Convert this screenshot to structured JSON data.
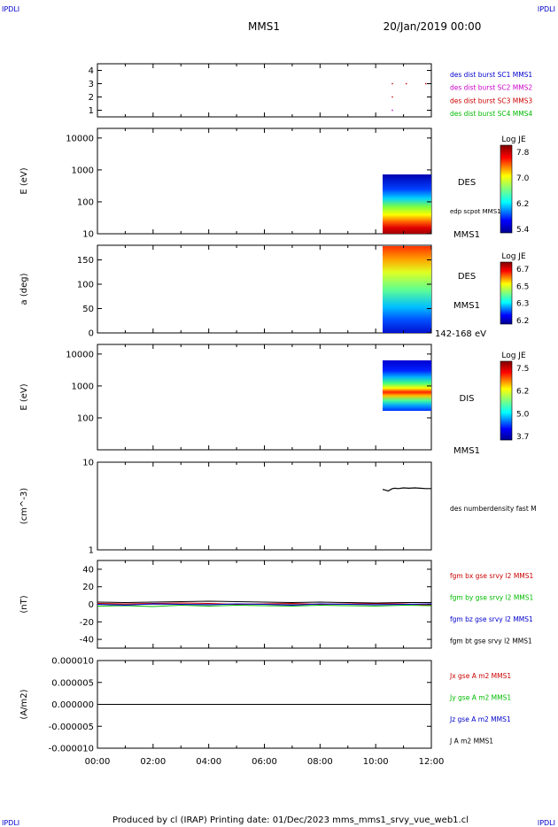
{
  "corner_labels": {
    "top_left": "IPDLI",
    "top_right": "IPDLI",
    "bottom_left": "IPDLI",
    "bottom_right": "IPDLI"
  },
  "header": {
    "title": "MMS1",
    "datetime": "20/Jan/2019 00:00"
  },
  "footer": {
    "text": "Produced by cl (IRAP)   Printing date: 01/Dec/2023   mms_mms1_srvy_vue_web1.cl"
  },
  "colors": {
    "axis": "#000000",
    "blue": "#0000cc",
    "magenta": "#cc00cc",
    "red": "#cc0000",
    "green": "#00bb00",
    "black": "#000000"
  },
  "chart_data": [
    {
      "type": "scatter",
      "panel": "burst-flags",
      "ylim": [
        0.5,
        4.5
      ],
      "y_ticks": [
        "1",
        "2",
        "3",
        "4"
      ],
      "legend": [
        "des dist burst SC1 MMS1",
        "des dist burst SC2 MMS2",
        "des dist burst SC3 MMS3",
        "des dist burst SC4 MMS4"
      ],
      "points": [
        [
          10.6,
          3
        ],
        [
          11.1,
          3
        ],
        [
          11.8,
          3
        ],
        [
          10.6,
          2
        ],
        [
          10.6,
          1
        ]
      ]
    },
    {
      "type": "heatmap",
      "panel": "des-energy",
      "ylabel": "E (eV)",
      "yscale": "log",
      "ylim": [
        10,
        20000
      ],
      "y_ticks": [
        "10",
        "100",
        "1000",
        "10000"
      ],
      "x_range": [
        10.25,
        12.0
      ],
      "y_range": [
        10,
        900
      ],
      "colorbar": {
        "title": "Log JE",
        "ticks": [
          "7.8",
          "7.0",
          "6.2",
          "5.4"
        ],
        "range": [
          5.4,
          7.8
        ]
      },
      "labels": [
        "DES",
        "edp scpot MMS1",
        "MMS1"
      ]
    },
    {
      "type": "heatmap",
      "panel": "des-pitch",
      "ylabel": "a (deg)",
      "ylim": [
        0,
        180
      ],
      "y_ticks": [
        "0",
        "50",
        "100",
        "150"
      ],
      "x_range": [
        10.25,
        12.0
      ],
      "colorbar": {
        "title": "Log JE",
        "ticks": [
          "6.7",
          "6.5",
          "6.3",
          "6.2"
        ],
        "range": [
          6.2,
          6.7
        ]
      },
      "labels": [
        "DES",
        "MMS1",
        "142-168 eV"
      ]
    },
    {
      "type": "heatmap",
      "panel": "dis-energy",
      "ylabel": "E (eV)",
      "yscale": "log",
      "ylim": [
        10,
        20000
      ],
      "y_ticks": [
        "100",
        "1000",
        "10000"
      ],
      "x_range": [
        10.25,
        12.0
      ],
      "y_range": [
        200,
        9000
      ],
      "colorbar": {
        "title": "Log JE",
        "ticks": [
          "7.5",
          "6.2",
          "5.0",
          "3.7"
        ],
        "range": [
          3.7,
          7.5
        ]
      },
      "labels": [
        "DIS",
        "MMS1"
      ]
    },
    {
      "type": "line",
      "panel": "density",
      "ylabel": "(cm^-3)",
      "yscale": "log",
      "ylim": [
        1,
        10
      ],
      "y_ticks": [
        "1",
        "10"
      ],
      "legend": [
        "des numberdensity fast M"
      ],
      "series": [
        {
          "x": [
            10.25,
            10.35,
            10.45,
            10.55,
            10.6,
            10.7,
            10.8,
            11.0,
            11.2,
            11.4,
            11.6,
            11.8,
            12.0
          ],
          "values": [
            4.9,
            4.8,
            4.7,
            4.9,
            5.0,
            5.05,
            5.0,
            5.1,
            5.05,
            5.1,
            5.05,
            5.0,
            5.0
          ]
        }
      ]
    },
    {
      "type": "line",
      "panel": "magnetic-field",
      "ylabel": "(nT)",
      "ylim": [
        -50,
        50
      ],
      "y_ticks": [
        "40",
        "20",
        "0",
        "-20",
        "-40"
      ],
      "legend": [
        "fgm bx gse srvy l2 MMS1",
        "fgm by gse srvy l2 MMS1",
        "fgm bz gse srvy l2 MMS1",
        "fgm bt gse srvy l2 MMS1"
      ],
      "series": [
        {
          "x": [
            0,
            1,
            2,
            3,
            4,
            5,
            6,
            7,
            8,
            9,
            10,
            11,
            12
          ],
          "values": [
            1,
            0.5,
            1,
            1.5,
            1,
            0,
            0.5,
            1,
            0,
            0.5,
            1,
            0.5,
            -1
          ]
        },
        {
          "x": [
            0,
            1,
            2,
            3,
            4,
            5,
            6,
            7,
            8,
            9,
            10,
            11,
            12
          ],
          "values": [
            -2,
            -1.5,
            -2.5,
            -1,
            -2,
            -1,
            -1.5,
            -2,
            -1,
            -1.5,
            -2,
            -1,
            -1.5
          ]
        },
        {
          "x": [
            0,
            1,
            2,
            3,
            4,
            5,
            6,
            7,
            8,
            9,
            10,
            11,
            12
          ],
          "values": [
            0,
            -1,
            0.5,
            0,
            -0.5,
            0.5,
            0,
            -1,
            0.5,
            0,
            -0.5,
            0,
            0.5
          ]
        },
        {
          "x": [
            0,
            1,
            2,
            3,
            4,
            5,
            6,
            7,
            8,
            9,
            10,
            11,
            12
          ],
          "values": [
            2.5,
            2,
            2.5,
            3,
            3.5,
            3,
            2.5,
            2,
            2.5,
            2,
            1.5,
            2,
            2
          ]
        }
      ]
    },
    {
      "type": "line",
      "panel": "current-density",
      "ylabel": "(A/m2)",
      "ylim": [
        -1e-05,
        1e-05
      ],
      "y_ticks": [
        "0.000010",
        "0.000005",
        "0.000000",
        "-0.000005",
        "-0.000010"
      ],
      "x_ticks": [
        "00:00",
        "02:00",
        "04:00",
        "06:00",
        "08:00",
        "10:00",
        "12:00"
      ],
      "legend": [
        "Jx gse A m2 MMS1",
        "Jy gse A m2 MMS1",
        "Jz gse A m2 MMS1",
        "J A m2 MMS1"
      ],
      "series": [
        {
          "x": [
            0,
            12
          ],
          "values": [
            0,
            0
          ]
        }
      ]
    }
  ]
}
